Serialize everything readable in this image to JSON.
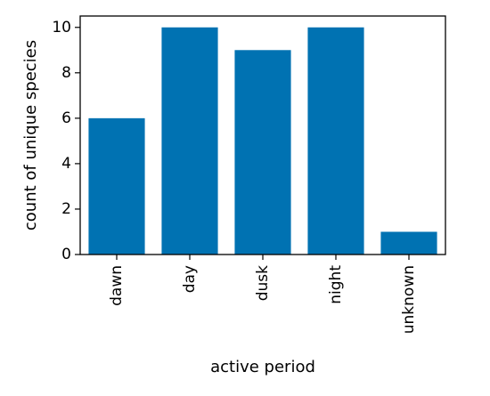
{
  "chart_data": {
    "type": "bar",
    "categories": [
      "dawn",
      "day",
      "dusk",
      "night",
      "unknown"
    ],
    "values": [
      6,
      10,
      9,
      10,
      1
    ],
    "title": "",
    "xlabel": "active period",
    "ylabel": "count of unique species",
    "ylim": [
      0,
      10.5
    ],
    "yticks": [
      0,
      2,
      4,
      6,
      8,
      10
    ],
    "grid": false,
    "bar_color": "#0072b2"
  }
}
